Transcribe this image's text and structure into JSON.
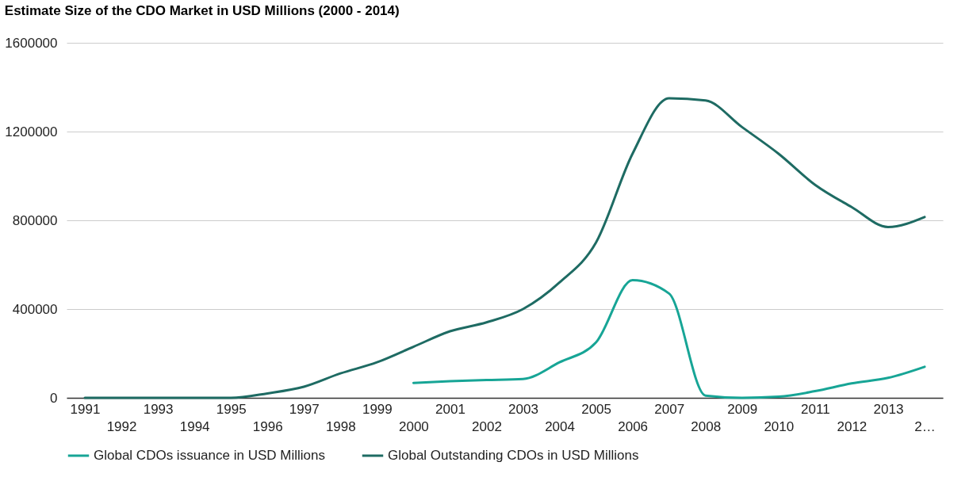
{
  "chart_data": {
    "type": "line",
    "title": "Estimate Size of the CDO Market in USD Millions (2000 - 2014)",
    "categories": [
      "1991",
      "1992",
      "1993",
      "1994",
      "1995",
      "1996",
      "1997",
      "1998",
      "1999",
      "2000",
      "2001",
      "2002",
      "2003",
      "2004",
      "2005",
      "2006",
      "2007",
      "2008",
      "2009",
      "2010",
      "2011",
      "2012",
      "2013",
      "2…"
    ],
    "series": [
      {
        "name": "Global CDOs issuance in USD Millions",
        "color": "#17a596",
        "values": [
          null,
          null,
          null,
          null,
          null,
          null,
          null,
          null,
          null,
          67000,
          75000,
          80000,
          85000,
          160000,
          250000,
          530000,
          470000,
          10000,
          0,
          5000,
          30000,
          65000,
          90000,
          140000
        ]
      },
      {
        "name": "Global Outstanding CDOs in USD Millions",
        "color": "#1e6b63",
        "values": [
          0,
          0,
          0,
          0,
          0,
          20000,
          50000,
          110000,
          160000,
          230000,
          300000,
          340000,
          400000,
          520000,
          700000,
          1100000,
          1350000,
          1340000,
          1220000,
          1100000,
          960000,
          860000,
          770000,
          815000
        ]
      }
    ],
    "ylim": [
      0,
      1600000
    ],
    "yticks": [
      0,
      400000,
      800000,
      1200000,
      1600000
    ],
    "grid": "y",
    "legend": "bottom"
  }
}
